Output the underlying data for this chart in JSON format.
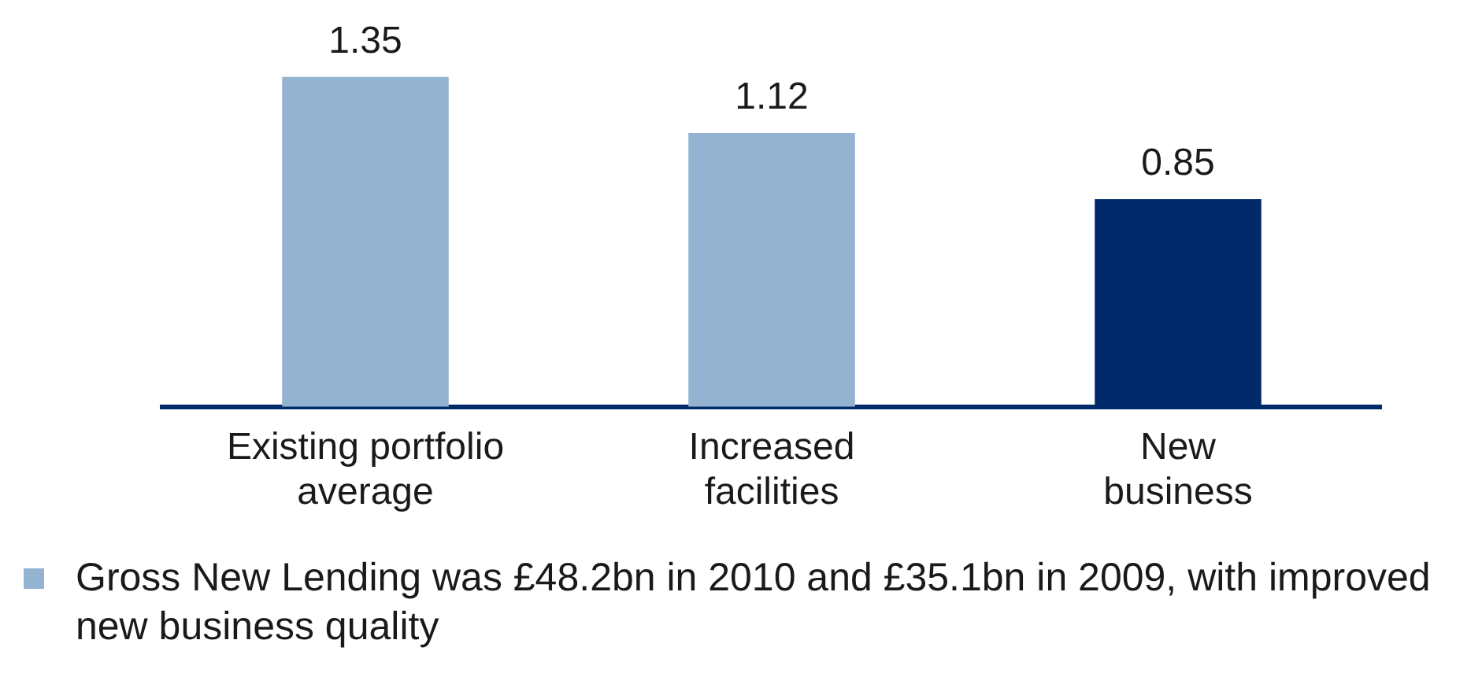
{
  "chart_data": {
    "type": "bar",
    "categories": [
      "Existing portfolio average",
      "Increased facilities",
      "New business"
    ],
    "values": [
      1.35,
      1.12,
      0.85
    ],
    "colors": [
      "#94b3d0",
      "#94b3d0",
      "#002a6a"
    ],
    "data_labels": true,
    "legend": false,
    "grid": false,
    "annotations": [
      "Gross New Lending was £48.2bn in 2010 and £35.1bn in 2009, with improved new business quality"
    ]
  }
}
